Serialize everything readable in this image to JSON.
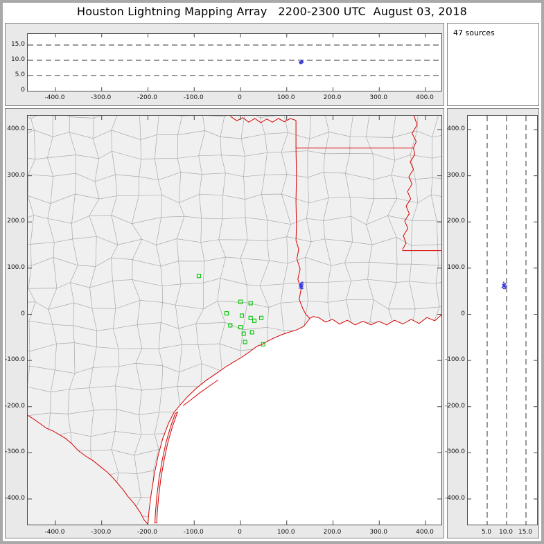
{
  "title": "Houston Lightning Mapping Array   2200-2300 UTC  August 03, 2018",
  "source_count_label": "47 sources",
  "colors": {
    "state_border": "#d60000",
    "county_line": "#a9a9a9",
    "station_marker": "#00c400",
    "source_marker": "#3c3cdc",
    "land": "#f0f0f0",
    "water": "#ffffff",
    "grid_dash": "#333333",
    "axis": "#444444"
  },
  "chart_data": [
    {
      "type": "scatter",
      "name": "altitude-vs-east-west",
      "x_tick_labels": [
        "-400.0",
        "-300.0",
        "-200.0",
        "-100.0",
        "0",
        "100.0",
        "200.0",
        "300.0",
        "400.0"
      ],
      "x_tick_values": [
        -400,
        -300,
        -200,
        -100,
        0,
        100,
        200,
        300,
        400
      ],
      "y_tick_labels": [
        "15.0",
        "10.0",
        "5.0",
        "0"
      ],
      "y_tick_values": [
        15,
        10,
        5,
        0
      ],
      "x_range_km": [
        -460,
        434
      ],
      "y_range_km": [
        0,
        18.6
      ],
      "dashed_altitudes_km": [
        5,
        10,
        15
      ],
      "grid": "dashed-horizontal",
      "series": [
        {
          "name": "lightning-sources",
          "marker": "dot"
        }
      ]
    },
    {
      "type": "scatter-map",
      "name": "plan-view-map",
      "x_tick_labels": [
        "-400.0",
        "-300.0",
        "-200.0",
        "-100.0",
        "0",
        "100.0",
        "200.0",
        "300.0",
        "400.0"
      ],
      "x_tick_values": [
        -400,
        -300,
        -200,
        -100,
        0,
        100,
        200,
        300,
        400
      ],
      "y_tick_labels": [
        "400.0",
        "300.0",
        "200.0",
        "100.0",
        "0",
        "-100.0",
        "-200.0",
        "-300.0",
        "-400.0"
      ],
      "y_tick_values": [
        400,
        300,
        200,
        100,
        0,
        -100,
        -200,
        -300,
        -400
      ],
      "x_range_km": [
        -460,
        434
      ],
      "y_range_km": [
        -455,
        430
      ],
      "lma_stations_km": [
        [
          -90,
          83
        ],
        [
          0,
          27
        ],
        [
          22,
          24
        ],
        [
          -30,
          2
        ],
        [
          3,
          -3
        ],
        [
          22,
          -8
        ],
        [
          -22,
          -24
        ],
        [
          0,
          -28
        ],
        [
          30,
          -14
        ],
        [
          45,
          -8
        ],
        [
          7,
          -42
        ],
        [
          25,
          -39
        ],
        [
          10,
          -60
        ],
        [
          49,
          -65
        ]
      ],
      "lightning_sources": {
        "count": 47,
        "center_east_km": 131,
        "center_north_km": 62,
        "altitude_km": 9.4,
        "ew_spread_km": 5,
        "ns_spread_km": 10,
        "alt_spread_km": 0.9
      }
    },
    {
      "type": "scatter",
      "name": "altitude-vs-north-south",
      "x_tick_labels": [
        "5.0",
        "10.0",
        "15.0"
      ],
      "x_tick_values": [
        5,
        10,
        15
      ],
      "y_tick_labels": [
        "400.0",
        "300.0",
        "200.0",
        "100.0",
        "0",
        "-100.0",
        "-200.0",
        "-300.0",
        "-400.0"
      ],
      "y_tick_values": [
        400,
        300,
        200,
        100,
        0,
        -100,
        -200,
        -300,
        -400
      ],
      "dashed_altitudes_km": [
        5,
        10,
        15
      ],
      "grid": "dashed-vertical"
    }
  ],
  "map_geometry": {
    "coast": [
      [
        434,
        -2
      ],
      [
        420,
        -14
      ],
      [
        403,
        -7
      ],
      [
        386,
        -20
      ],
      [
        369,
        -11
      ],
      [
        351,
        -21
      ],
      [
        333,
        -13
      ],
      [
        316,
        -23
      ],
      [
        299,
        -15
      ],
      [
        282,
        -23
      ],
      [
        265,
        -15
      ],
      [
        248,
        -23
      ],
      [
        231,
        -13
      ],
      [
        214,
        -21
      ],
      [
        199,
        -11
      ],
      [
        184,
        -17
      ],
      [
        169,
        -7
      ],
      [
        157,
        -5
      ],
      [
        150,
        -9
      ],
      [
        137,
        -26
      ],
      [
        121,
        -34
      ],
      [
        104,
        -39
      ],
      [
        87,
        -45
      ],
      [
        69,
        -53
      ],
      [
        54,
        -61
      ],
      [
        48,
        -65
      ],
      [
        36,
        -69
      ],
      [
        20,
        -81
      ],
      [
        3,
        -93
      ],
      [
        -14,
        -103
      ],
      [
        -32,
        -114
      ],
      [
        -52,
        -128
      ],
      [
        -74,
        -143
      ],
      [
        -94,
        -159
      ],
      [
        -114,
        -178
      ],
      [
        -131,
        -197
      ],
      [
        -144,
        -213
      ],
      [
        -156,
        -237
      ],
      [
        -168,
        -269
      ],
      [
        -178,
        -306
      ],
      [
        -186,
        -346
      ],
      [
        -193,
        -389
      ],
      [
        -198,
        -429
      ],
      [
        -200,
        -455
      ]
    ],
    "rio_grande": [
      [
        -200,
        -455
      ],
      [
        -208,
        -446
      ],
      [
        -217,
        -429
      ],
      [
        -229,
        -411
      ],
      [
        -243,
        -395
      ],
      [
        -253,
        -381
      ],
      [
        -263,
        -369
      ],
      [
        -275,
        -355
      ],
      [
        -289,
        -341
      ],
      [
        -304,
        -329
      ],
      [
        -319,
        -317
      ],
      [
        -335,
        -307
      ],
      [
        -351,
        -295
      ],
      [
        -364,
        -281
      ],
      [
        -378,
        -269
      ],
      [
        -391,
        -261
      ],
      [
        -405,
        -253
      ],
      [
        -419,
        -247
      ],
      [
        -433,
        -237
      ],
      [
        -447,
        -227
      ],
      [
        -460,
        -219
      ]
    ],
    "tx_east_border": [
      [
        120,
        420
      ],
      [
        120,
        360
      ],
      [
        121,
        300
      ],
      [
        120,
        245
      ],
      [
        121,
        190
      ],
      [
        120,
        160
      ],
      [
        126,
        141
      ],
      [
        122,
        120
      ],
      [
        129,
        98
      ],
      [
        124,
        76
      ],
      [
        131,
        54
      ],
      [
        127,
        32
      ],
      [
        135,
        12
      ],
      [
        141,
        0
      ],
      [
        150,
        -9
      ]
    ],
    "red_river": [
      [
        -22,
        429
      ],
      [
        -8,
        419
      ],
      [
        5,
        426
      ],
      [
        18,
        416
      ],
      [
        31,
        424
      ],
      [
        44,
        415
      ],
      [
        57,
        423
      ],
      [
        69,
        416
      ],
      [
        82,
        424
      ],
      [
        95,
        417
      ],
      [
        108,
        424
      ],
      [
        120,
        420
      ]
    ],
    "ar_la_border": [
      [
        120,
        360
      ],
      [
        374,
        360
      ]
    ],
    "mississippi_river": [
      [
        375,
        430
      ],
      [
        382,
        410
      ],
      [
        371,
        392
      ],
      [
        380,
        374
      ],
      [
        374,
        360
      ],
      [
        377,
        346
      ],
      [
        367,
        330
      ],
      [
        374,
        314
      ],
      [
        364,
        298
      ],
      [
        371,
        282
      ],
      [
        361,
        266
      ],
      [
        368,
        250
      ],
      [
        358,
        234
      ],
      [
        365,
        218
      ],
      [
        355,
        202
      ],
      [
        362,
        186
      ],
      [
        352,
        170
      ],
      [
        358,
        154
      ],
      [
        350,
        140
      ]
    ],
    "la_ms_border": [
      [
        350,
        138
      ],
      [
        434,
        138
      ]
    ],
    "matagorda_island": [
      [
        -48,
        -142
      ],
      [
        -68,
        -156
      ],
      [
        -88,
        -170
      ],
      [
        -108,
        -186
      ],
      [
        -124,
        -198
      ]
    ],
    "barrier_island": [
      [
        -136,
        -212
      ],
      [
        -147,
        -243
      ],
      [
        -157,
        -278
      ],
      [
        -165,
        -315
      ],
      [
        -172,
        -355
      ],
      [
        -177,
        -395
      ],
      [
        -180,
        -432
      ],
      [
        -181,
        -452
      ],
      [
        -185,
        -452
      ],
      [
        -184,
        -432
      ],
      [
        -181,
        -395
      ],
      [
        -176,
        -355
      ],
      [
        -169,
        -315
      ],
      [
        -161,
        -278
      ],
      [
        -151,
        -243
      ],
      [
        -141,
        -215
      ]
    ]
  }
}
